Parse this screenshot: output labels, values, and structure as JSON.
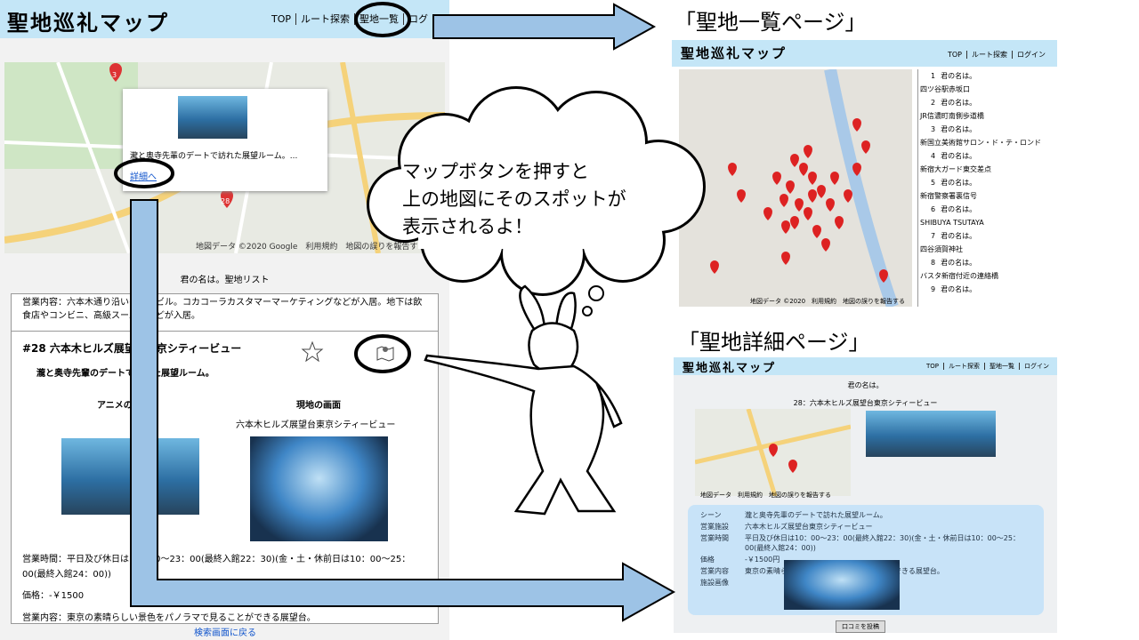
{
  "left": {
    "logo": "聖地巡礼マップ",
    "nav": [
      "TOP",
      "ルート探索",
      "聖地一覧",
      "ログ"
    ],
    "map": {
      "pins": [
        "3",
        "28"
      ],
      "popup_text": "瀧と奥寺先輩のデートで訪れた展望ルーム。...",
      "popup_link": "詳細へ",
      "credit": "地図データ ©2020 Google　利用規約　地図の誤りを報告する"
    },
    "list_title": "君の名は。聖地リスト",
    "prev_business": "営業内容：六本木通り沿いの高層ビル。コカコーラカスタマーマーケティングなどが入居。地下は飲食店やコンビニ、高級スーパーなどが入居。",
    "card": {
      "title": "#28  六本木ヒルズ展望台東京シティービュー",
      "scene": "瀧と奥寺先輩のデートで訪れた展望ルーム。",
      "anime_label": "アニメの画面",
      "real_label": "現地の画面",
      "real_caption": "六本木ヒルズ展望台東京シティービュー",
      "hours": "営業時間：平日及び休日は10：00～23：00(最終入館22：30)(金・土・休前日は10：00～25：00(最終入館24：00))",
      "price": "価格：-￥1500",
      "business": "営業内容：東京の素晴らしい景色をパノラマで見ることができる展望台。"
    },
    "back": "検索画面に戻る"
  },
  "bubble": [
    "マップボタンを押すと",
    "上の地図にそのスポットが",
    "表示されるよ！"
  ],
  "list_page": {
    "caption": "「聖地一覧ページ」",
    "logo": "聖地巡礼マップ",
    "nav": [
      "TOP",
      "ルート探索",
      "ログイン"
    ],
    "map_credit": "地図データ ©2020　利用規約　地図の誤りを報告する",
    "items": [
      {
        "number": "1",
        "title": "君の名は。",
        "place": "四ツ谷駅赤坂口"
      },
      {
        "number": "2",
        "title": "君の名は。",
        "place": "JR信濃町南側歩道橋"
      },
      {
        "number": "3",
        "title": "君の名は。",
        "place": "新国立美術館サロン・ド・テ・ロンド"
      },
      {
        "number": "4",
        "title": "君の名は。",
        "place": "新宿大ガード東交差点"
      },
      {
        "number": "5",
        "title": "君の名は。",
        "place": "新宿警察署裏信号"
      },
      {
        "number": "6",
        "title": "君の名は。",
        "place": "SHIBUYA TSUTAYA"
      },
      {
        "number": "7",
        "title": "君の名は。",
        "place": "四谷須賀神社"
      },
      {
        "number": "8",
        "title": "君の名は。",
        "place": "バスタ新宿付近の連絡橋"
      },
      {
        "number": "9",
        "title": "君の名は。"
      }
    ]
  },
  "detail_page": {
    "caption": "「聖地詳細ページ」",
    "logo": "聖地巡礼マップ",
    "nav": [
      "TOP",
      "ルート探索",
      "聖地一覧",
      "ログイン"
    ],
    "work": "君の名は。",
    "spot": "28：六本木ヒルズ展望台東京シティービュー",
    "map_credit": "地図データ　利用規約　地図の誤りを報告する",
    "rows": [
      [
        "シーン",
        "瀧と奥寺先輩のデートで訪れた展望ルーム。"
      ],
      [
        "営業施設",
        "六本木ヒルズ展望台東京シティービュー"
      ],
      [
        "営業時間",
        "平日及び休日は10：00～23：00(最終入館22：30)(金・土・休前日は10：00～25：00(最終入館24：00))"
      ],
      [
        "価格",
        "-￥1500円"
      ],
      [
        "営業内容",
        "東京の素晴らしい景色をパノラマで見ることができる展望台。"
      ],
      [
        "施設画像"
      ]
    ],
    "button": "口コミを投稿"
  }
}
